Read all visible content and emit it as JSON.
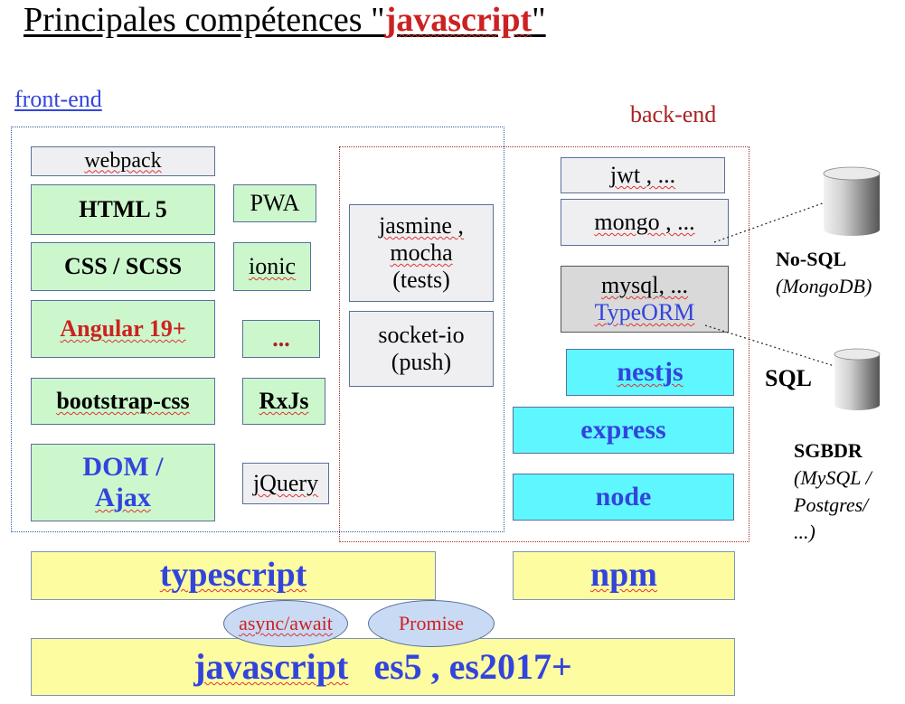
{
  "title": {
    "prefix": "Principales compétences \"",
    "highlight": "javascript",
    "suffix": "\""
  },
  "frontend_label": "front-end",
  "backend_label": "back-end",
  "front": {
    "webpack": "webpack",
    "html5": "HTML 5",
    "pwa": "PWA",
    "css": "CSS / SCSS",
    "ionic": "ionic",
    "angular": "Angular 19+",
    "dots": "...",
    "bootstrap": "bootstrap-css",
    "rxjs": "RxJs",
    "dom_line1": "DOM /",
    "dom_line2": "Ajax",
    "jquery": "jQuery"
  },
  "shared": {
    "jasmine_line1": "jasmine ,",
    "jasmine_line2": "mocha",
    "jasmine_line3": "(tests)",
    "socket_line1": "socket-io",
    "socket_line2": "(push)"
  },
  "back": {
    "jwt": "jwt , ...",
    "mongo": "mongo , ...",
    "mysql_line1": "mysql, ...",
    "mysql_line2": "TypeORM",
    "nestjs": "nestjs",
    "express": "express",
    "node": "node"
  },
  "databases": {
    "nosql_name": "No-SQL",
    "nosql_detail": "(MongoDB)",
    "sql_label": "SQL",
    "sgbdr_name": "SGBDR",
    "sgbdr_line1": "(MySQL /",
    "sgbdr_line2": "Postgres/",
    "sgbdr_line3": "...)"
  },
  "base": {
    "typescript": "typescript",
    "npm": "npm",
    "async": "async/await",
    "promise": "Promise",
    "js": "javascript",
    "es": "es5 , es2017+"
  },
  "colors": {
    "green": "#ccf7cc",
    "cyan": "#5ff7ff",
    "yellow": "#fdfca0",
    "gray": "#efeff1",
    "blue_text": "#3344dd",
    "red_text": "#cc2222"
  }
}
